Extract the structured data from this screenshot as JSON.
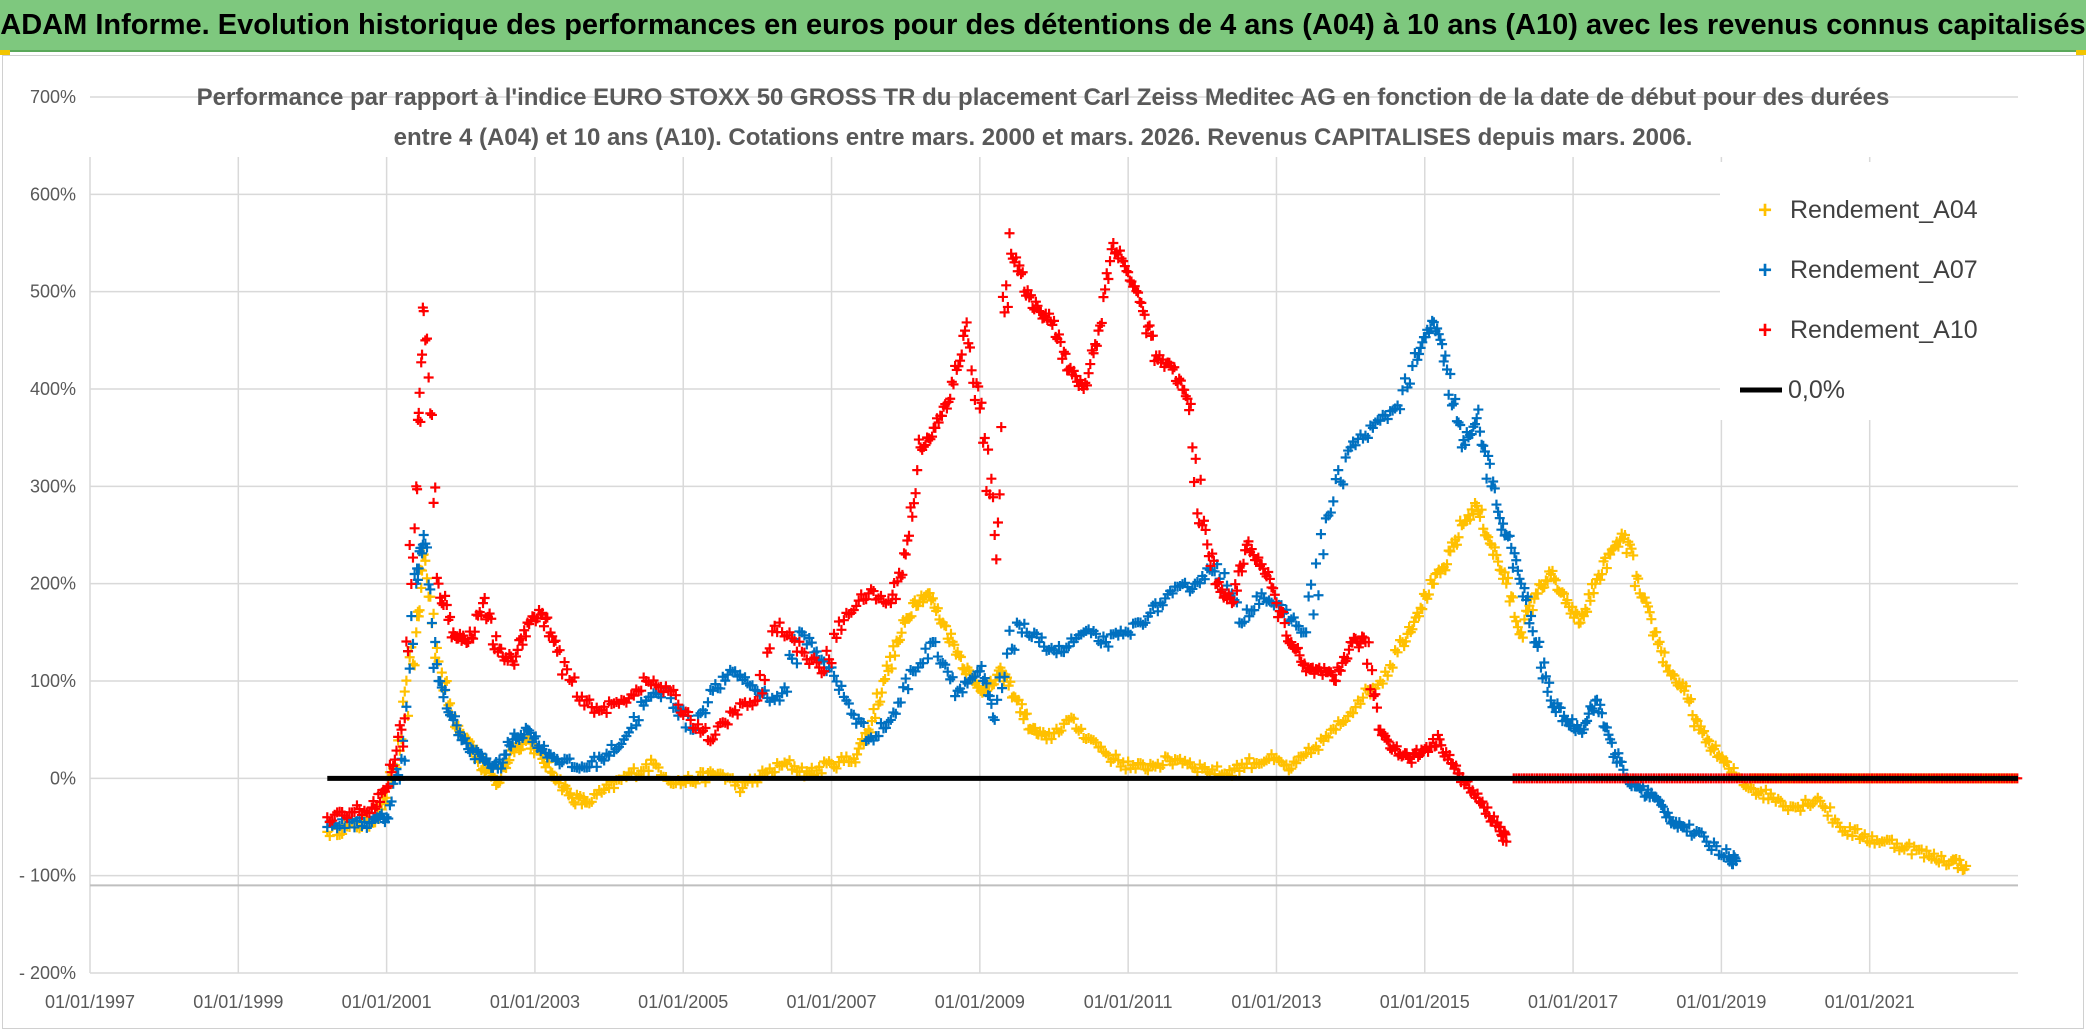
{
  "header": {
    "banner": "ADAM Informe. Evolution historique des performances en euros pour des détentions de 4 ans (A04) à 10 ans (A10) avec les revenus connus capitalisés"
  },
  "chart_data": {
    "type": "scatter",
    "title_line1": "Performance par rapport à l'indice EURO STOXX 50 GROSS TR  du placement Carl Zeiss Meditec AG en fonction de la date de début pour des durées",
    "title_line2": "entre 4 (A04) et 10 ans (A10). Cotations entre mars. 2000 et mars. 2026. Revenus CAPITALISES depuis mars. 2006.",
    "ylim": [
      -200,
      700
    ],
    "y_ticks": [
      -200,
      -100,
      0,
      100,
      200,
      300,
      400,
      500,
      600,
      700
    ],
    "y_tick_labels": [
      "- 200%",
      "- 100%",
      "0%",
      "100%",
      "200%",
      "300%",
      "400%",
      "500%",
      "600%",
      "700%"
    ],
    "xlim": [
      1997.0,
      2023.0
    ],
    "x_ticks": [
      1997,
      1999,
      2001,
      2003,
      2005,
      2007,
      2009,
      2011,
      2013,
      2015,
      2017,
      2019,
      2021
    ],
    "x_tick_labels": [
      "01/01/1997",
      "01/01/1999",
      "01/01/2001",
      "01/01/2003",
      "01/01/2005",
      "01/01/2007",
      "01/01/2009",
      "01/01/2011",
      "01/01/2013",
      "01/01/2015",
      "01/01/2017",
      "01/01/2019",
      "01/01/2021"
    ],
    "grid": true,
    "legend_position": "top-right",
    "legend": [
      "Rendement_A04",
      "Rendement_A07",
      "Rendement_A10",
      "0,0%"
    ],
    "colors": {
      "A04": "#ffc000",
      "A07": "#0070c0",
      "A10": "#ff0000",
      "zero": "#000000"
    },
    "series": [
      {
        "name": "Rendement_A04",
        "color": "#ffc000",
        "x": [
          2000.2,
          2000.5,
          2000.8,
          2001.0,
          2001.2,
          2001.4,
          2001.5,
          2001.7,
          2001.9,
          2002.1,
          2002.3,
          2002.5,
          2002.7,
          2002.9,
          2003.1,
          2003.3,
          2003.5,
          2003.7,
          2004.0,
          2004.3,
          2004.6,
          2004.9,
          2005.2,
          2005.5,
          2005.8,
          2006.1,
          2006.4,
          2006.7,
          2007.0,
          2007.3,
          2007.5,
          2007.7,
          2007.9,
          2008.1,
          2008.3,
          2008.5,
          2008.7,
          2008.9,
          2009.1,
          2009.3,
          2009.5,
          2009.7,
          2009.9,
          2010.2,
          2010.5,
          2010.8,
          2011.1,
          2011.4,
          2011.7,
          2012.0,
          2012.3,
          2012.6,
          2012.9,
          2013.2,
          2013.5,
          2013.8,
          2014.1,
          2014.4,
          2014.7,
          2014.9,
          2015.1,
          2015.3,
          2015.5,
          2015.7,
          2015.9,
          2016.1,
          2016.3,
          2016.5,
          2016.7,
          2016.9,
          2017.1,
          2017.3,
          2017.5,
          2017.7,
          2017.9,
          2018.1,
          2018.3,
          2018.5,
          2018.7,
          2018.9,
          2019.1,
          2019.4,
          2019.7,
          2020.0,
          2020.3,
          2020.6,
          2020.9,
          2021.2,
          2021.5,
          2021.8,
          2022.1,
          2022.3
        ],
        "y": [
          -55,
          -50,
          -45,
          -20,
          40,
          150,
          230,
          120,
          60,
          40,
          10,
          -5,
          30,
          40,
          20,
          0,
          -20,
          -25,
          -10,
          5,
          15,
          -5,
          0,
          5,
          -10,
          5,
          15,
          5,
          15,
          20,
          50,
          100,
          140,
          180,
          190,
          160,
          130,
          100,
          90,
          110,
          80,
          50,
          40,
          60,
          40,
          20,
          10,
          15,
          20,
          10,
          5,
          15,
          20,
          10,
          30,
          50,
          80,
          100,
          140,
          170,
          200,
          220,
          260,
          280,
          240,
          200,
          150,
          190,
          210,
          180,
          160,
          200,
          230,
          250,
          190,
          150,
          110,
          90,
          50,
          30,
          10,
          -10,
          -20,
          -30,
          -20,
          -50,
          -60,
          -65,
          -70,
          -80,
          -85,
          -90
        ]
      },
      {
        "name": "Rendement_A07",
        "color": "#0070c0",
        "x": [
          2000.2,
          2000.5,
          2000.8,
          2001.0,
          2001.2,
          2001.4,
          2001.5,
          2001.7,
          2001.9,
          2002.1,
          2002.3,
          2002.5,
          2002.7,
          2002.9,
          2003.1,
          2003.3,
          2003.6,
          2003.9,
          2004.2,
          2004.5,
          2004.8,
          2005.1,
          2005.4,
          2005.7,
          2006.0,
          2006.3,
          2006.6,
          2006.9,
          2007.2,
          2007.5,
          2007.8,
          2008.1,
          2008.4,
          2008.7,
          2009.0,
          2009.2,
          2009.5,
          2009.8,
          2010.1,
          2010.4,
          2010.7,
          2011.0,
          2011.3,
          2011.6,
          2011.9,
          2012.2,
          2012.5,
          2012.8,
          2013.1,
          2013.4,
          2013.7,
          2014.0,
          2014.3,
          2014.6,
          2014.9,
          2015.1,
          2015.3,
          2015.5,
          2015.7,
          2015.9,
          2016.1,
          2016.3,
          2016.5,
          2016.7,
          2016.9,
          2017.1,
          2017.3,
          2017.5,
          2017.7,
          2017.9,
          2018.1,
          2018.3,
          2018.5,
          2018.8,
          2019.1,
          2019.2
        ],
        "y": [
          -50,
          -45,
          -45,
          -40,
          20,
          200,
          250,
          100,
          60,
          30,
          20,
          10,
          40,
          50,
          30,
          20,
          10,
          20,
          40,
          80,
          90,
          50,
          90,
          110,
          90,
          80,
          150,
          120,
          80,
          40,
          60,
          110,
          140,
          90,
          110,
          60,
          160,
          140,
          130,
          150,
          140,
          150,
          170,
          190,
          200,
          220,
          160,
          190,
          170,
          150,
          270,
          340,
          360,
          380,
          430,
          470,
          420,
          340,
          370,
          300,
          250,
          200,
          140,
          80,
          60,
          50,
          80,
          40,
          0,
          -10,
          -20,
          -40,
          -50,
          -65,
          -80,
          -85
        ]
      },
      {
        "name": "Rendement_A10",
        "color": "#ff0000",
        "x": [
          2000.2,
          2000.5,
          2000.8,
          2001.0,
          2001.2,
          2001.4,
          2001.5,
          2001.7,
          2001.9,
          2002.1,
          2002.3,
          2002.5,
          2002.7,
          2002.9,
          2003.1,
          2003.3,
          2003.6,
          2003.9,
          2004.2,
          2004.5,
          2004.8,
          2005.1,
          2005.4,
          2005.7,
          2006.0,
          2006.3,
          2006.6,
          2006.9,
          2007.2,
          2007.5,
          2007.8,
          2008.0,
          2008.2,
          2008.4,
          2008.6,
          2008.8,
          2009.0,
          2009.2,
          2009.4,
          2009.6,
          2009.8,
          2010.0,
          2010.2,
          2010.4,
          2010.6,
          2010.8,
          2011.0,
          2011.2,
          2011.4,
          2011.6,
          2011.8,
          2012.0,
          2012.2,
          2012.4,
          2012.6,
          2012.8,
          2013.0,
          2013.2,
          2013.4,
          2013.6,
          2013.8,
          2014.0,
          2014.2,
          2014.4,
          2014.6,
          2014.8,
          2015.0,
          2015.2,
          2015.4,
          2015.6,
          2015.8,
          2016.0,
          2016.1
        ],
        "y": [
          -40,
          -35,
          -30,
          -10,
          50,
          300,
          480,
          200,
          150,
          140,
          180,
          130,
          120,
          160,
          170,
          130,
          80,
          70,
          80,
          100,
          90,
          60,
          40,
          70,
          80,
          160,
          130,
          110,
          170,
          190,
          180,
          230,
          340,
          360,
          390,
          460,
          380,
          250,
          560,
          500,
          480,
          470,
          420,
          400,
          460,
          550,
          520,
          480,
          430,
          420,
          390,
          260,
          200,
          180,
          240,
          220,
          180,
          140,
          110,
          110,
          100,
          140,
          140,
          50,
          30,
          20,
          30,
          40,
          10,
          -10,
          -30,
          -50,
          -65
        ]
      }
    ],
    "zero_line": {
      "name": "0,0%",
      "x_start": 2000.2,
      "x_end": 2023.0,
      "value": 0
    },
    "a10_zero_segment": {
      "x_start": 2016.2,
      "x_end": 2023.0,
      "value": 0
    },
    "a04_zero_segment": {
      "x_start": 2019.4,
      "x_end": 2023.0,
      "value": 0
    }
  }
}
